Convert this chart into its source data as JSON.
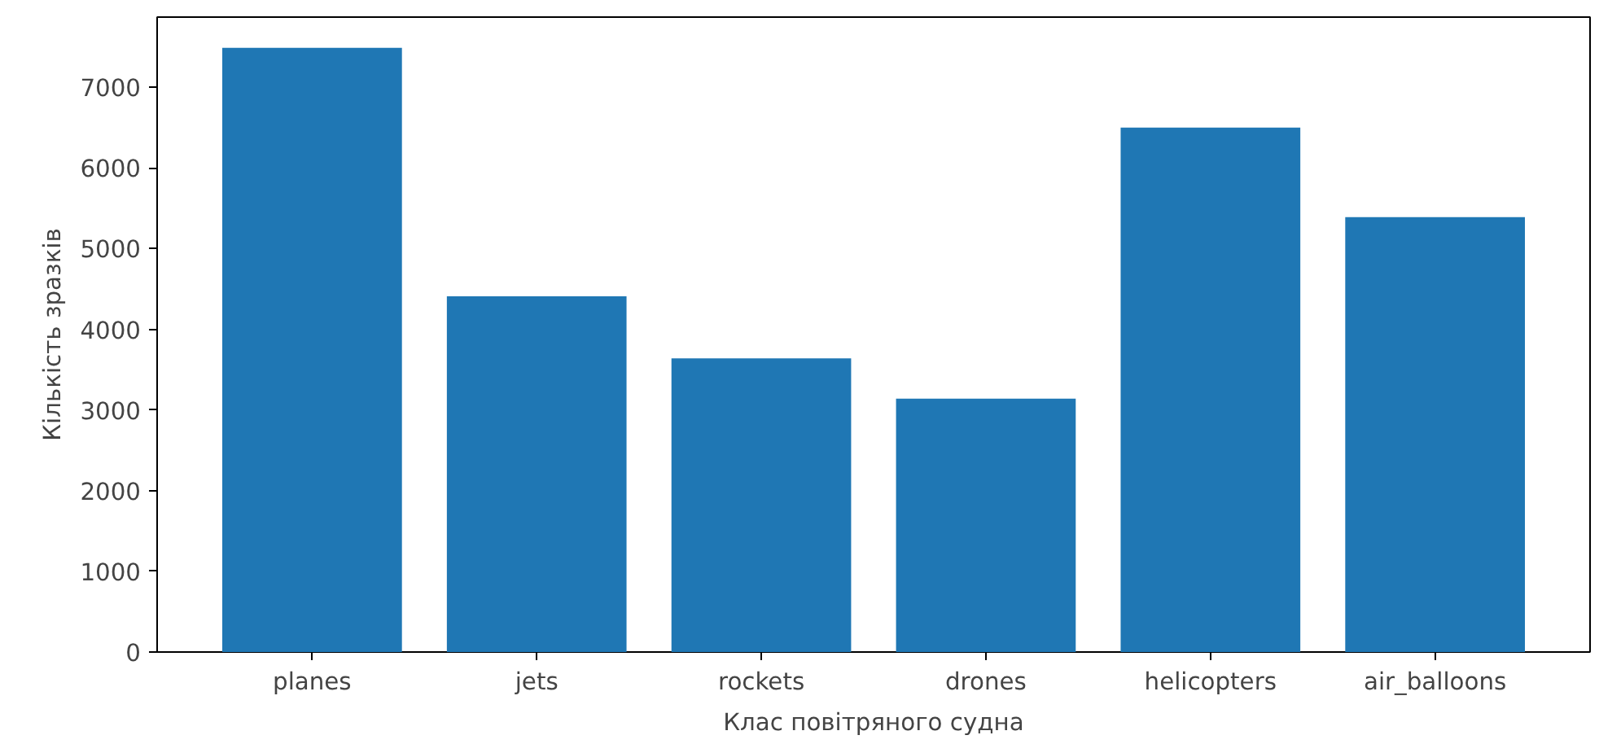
{
  "chart_data": {
    "type": "bar",
    "xlabel": "Клас повітряного судна",
    "ylabel": "Кількість зразків",
    "categories": [
      "planes",
      "jets",
      "rockets",
      "drones",
      "helicopters",
      "air_balloons"
    ],
    "values": [
      7490,
      4410,
      3640,
      3140,
      6500,
      5390
    ],
    "color": "#1f77b4",
    "ylim": [
      0,
      7870
    ],
    "yticks": [
      0,
      1000,
      2000,
      3000,
      4000,
      5000,
      6000,
      7000
    ],
    "grid": false
  }
}
